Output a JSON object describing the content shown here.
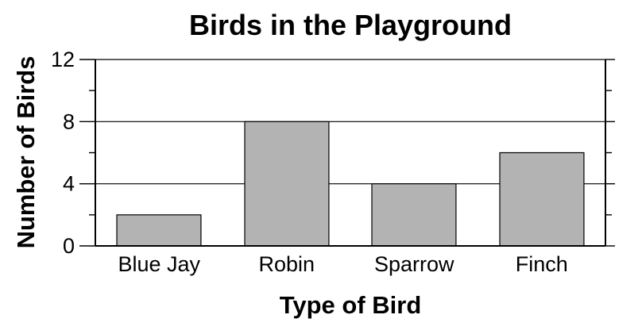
{
  "chart_data": {
    "type": "bar",
    "title": "Birds in the Playground",
    "xlabel": "Type of Bird",
    "ylabel": "Number of Birds",
    "categories": [
      "Blue Jay",
      "Robin",
      "Sparrow",
      "Finch"
    ],
    "values": [
      2,
      8,
      4,
      6
    ],
    "ylim": [
      0,
      12
    ],
    "yticks": [
      0,
      4,
      8,
      12
    ],
    "ytick_labels": [
      "0",
      "4",
      "8",
      "12"
    ],
    "minor_tick_step": 2,
    "grid": true,
    "colors": {
      "bar_fill": "#b3b3b3",
      "bar_stroke": "#000000",
      "grid": "#000000"
    }
  }
}
